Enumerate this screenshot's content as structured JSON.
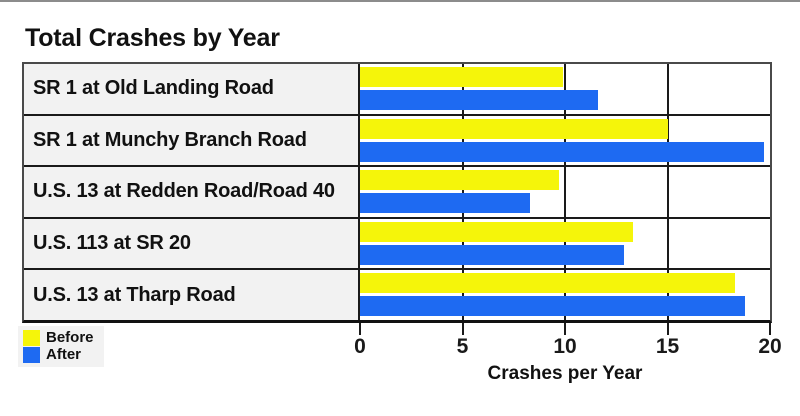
{
  "page": {
    "title": "Total Crashes by Year"
  },
  "chart_data": {
    "type": "bar",
    "orientation": "horizontal",
    "title": "Total Crashes by Year",
    "xlabel": "Crashes per Year",
    "xlim": [
      0,
      20
    ],
    "x_ticks": [
      "0",
      "5",
      "10",
      "15",
      "20"
    ],
    "grid": "vertical gridlines at 5, 10, 15",
    "legend_position": "bottom-left",
    "categories": [
      "SR 1 at Old Landing Road",
      "SR 1 at Munchy Branch Road",
      "U.S. 13 at Redden Road/Road 40",
      "U.S. 113 at SR 20",
      "U.S. 13 at Tharp Road"
    ],
    "series": [
      {
        "name": "Before",
        "color": "#f5f50a",
        "values": [
          9.9,
          15.0,
          9.7,
          13.3,
          18.3
        ]
      },
      {
        "name": "After",
        "color": "#1e6af2",
        "values": [
          11.6,
          19.7,
          8.3,
          12.9,
          18.8
        ]
      }
    ]
  },
  "colors": {
    "label_cell_bg": "#f2f2f2",
    "legend_bg": "#f2f2f2",
    "gridline": "#1a1a1a",
    "outer_border": "#4a4a4a",
    "axis_line": "#111111",
    "top_rule": "#8c8c8c"
  }
}
